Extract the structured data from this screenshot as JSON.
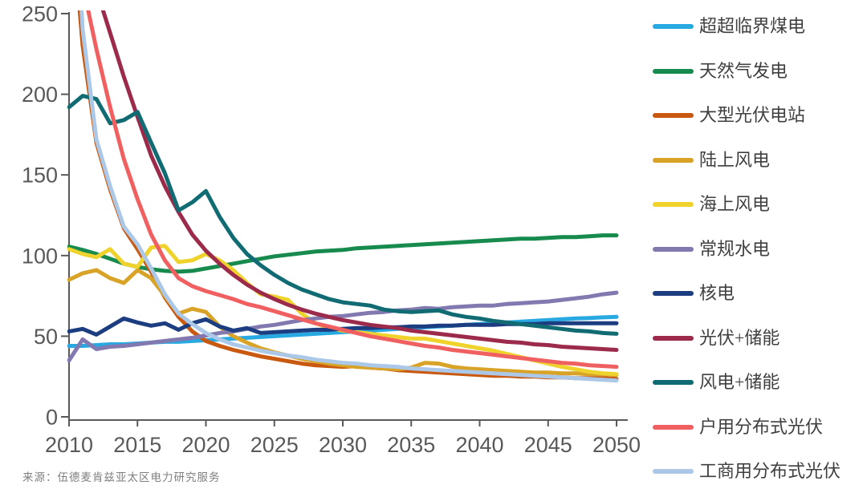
{
  "chart_data": {
    "type": "line",
    "title": "",
    "xlabel": "",
    "ylabel": "",
    "x": [
      2010,
      2011,
      2012,
      2013,
      2014,
      2015,
      2016,
      2017,
      2018,
      2019,
      2020,
      2021,
      2022,
      2023,
      2024,
      2025,
      2026,
      2027,
      2028,
      2029,
      2030,
      2031,
      2032,
      2033,
      2034,
      2035,
      2036,
      2037,
      2038,
      2039,
      2040,
      2041,
      2042,
      2043,
      2044,
      2045,
      2046,
      2047,
      2048,
      2049,
      2050
    ],
    "x_ticks": [
      2010,
      2015,
      2020,
      2025,
      2030,
      2035,
      2040,
      2045,
      2050
    ],
    "y_ticks": [
      0,
      50,
      100,
      150,
      200,
      250
    ],
    "xlim": [
      2010,
      2050
    ],
    "ylim": [
      0,
      250
    ],
    "grid": false,
    "legend_position": "right",
    "axis_color": "#595959",
    "tick_label_color": "#595959",
    "series": [
      {
        "name": "超超临界煤电",
        "color": "#29A9E1",
        "values": [
          44,
          44,
          44.5,
          45,
          45,
          45.5,
          46,
          46.5,
          46.5,
          47,
          47.5,
          48,
          48.5,
          49,
          49.5,
          50,
          50.5,
          51,
          51.5,
          52,
          52.5,
          53,
          53.5,
          54,
          54.5,
          55,
          55.5,
          56,
          56.5,
          57,
          57.5,
          58,
          58.5,
          59,
          59.5,
          60,
          60.5,
          61,
          61.3,
          61.7,
          62
        ]
      },
      {
        "name": "天然气发电",
        "color": "#178A4D",
        "values": [
          105.5,
          103.5,
          101,
          98,
          95,
          93,
          91.5,
          90.5,
          90,
          90.5,
          92,
          93.5,
          95,
          96.5,
          98,
          99.5,
          100.5,
          101.5,
          102.5,
          103,
          103.5,
          104.5,
          105,
          105.5,
          106,
          106.5,
          107,
          107.5,
          108,
          108.5,
          109,
          109.5,
          110,
          110.5,
          110.5,
          111,
          111.5,
          111.5,
          112,
          112.5,
          112.5
        ]
      },
      {
        "name": "大型光伏电站",
        "color": "#C8590E",
        "values": [
          330,
          230,
          170,
          141,
          117,
          104,
          90,
          74,
          62,
          53,
          47,
          44,
          41.5,
          39.5,
          37.5,
          36,
          34.5,
          33,
          32,
          31.5,
          31,
          31.5,
          30.5,
          30,
          29,
          28.5,
          28,
          27.5,
          27,
          26.5,
          26,
          25.5,
          25.5,
          25,
          25,
          24.5,
          24.5,
          24,
          24,
          24,
          23.5
        ]
      },
      {
        "name": "陆上风电",
        "color": "#D9A328",
        "values": [
          85,
          89,
          91,
          86,
          83,
          91,
          86,
          75,
          64,
          67,
          65,
          56,
          50,
          46,
          42.5,
          40,
          38,
          36,
          34.5,
          33,
          32,
          31,
          30.5,
          30,
          29.5,
          30.5,
          33.5,
          33,
          31,
          30,
          29.5,
          29,
          28.5,
          28,
          27.5,
          27.5,
          27,
          27,
          26.5,
          26.5,
          26
        ]
      },
      {
        "name": "海上风电",
        "color": "#EFD32C",
        "values": [
          104,
          101,
          99,
          104,
          95,
          93,
          105,
          106,
          96,
          97,
          101,
          97,
          91,
          83,
          76,
          74.5,
          72.5,
          64,
          58,
          55,
          53.5,
          52.5,
          51.5,
          50.5,
          49.5,
          48.5,
          48.5,
          47,
          45.5,
          44,
          42.5,
          41,
          39,
          37,
          35,
          33,
          31,
          29.5,
          28,
          27,
          26.5
        ]
      },
      {
        "name": "常规水电",
        "color": "#8179AF",
        "values": [
          35,
          48,
          42,
          43.5,
          44,
          45,
          46,
          47,
          48,
          49,
          50.5,
          52,
          53,
          54.5,
          56,
          57,
          58.5,
          60,
          61,
          62,
          62.5,
          63.5,
          64.5,
          65,
          66,
          66.5,
          67.5,
          67,
          68,
          68.5,
          69,
          69,
          70,
          70.5,
          71,
          71.5,
          72.5,
          73.5,
          74.5,
          76,
          77
        ]
      },
      {
        "name": "核电",
        "color": "#1C3D80",
        "values": [
          53,
          54.5,
          51,
          56,
          61,
          58.5,
          56.5,
          58,
          54,
          58,
          60.5,
          56,
          53.5,
          55,
          52,
          52.5,
          53,
          53.5,
          54,
          54,
          54.5,
          55,
          55,
          55.5,
          55.5,
          56,
          56,
          56.5,
          56.5,
          57,
          57,
          57,
          57.5,
          57.5,
          57.5,
          58,
          58,
          58,
          58,
          58,
          58
        ]
      },
      {
        "name": "光伏+储能",
        "color": "#9C2A4B",
        "values": [
          340,
          300,
          265,
          238,
          211,
          186,
          162,
          143,
          127,
          113,
          103,
          95,
          88,
          82,
          77,
          73,
          69.5,
          66.5,
          64,
          62,
          60,
          58.5,
          57,
          56,
          55,
          53.5,
          52.5,
          51.5,
          50.5,
          49.5,
          48.5,
          47.5,
          46.5,
          46,
          45,
          44.5,
          43.5,
          43,
          42.5,
          42,
          41.5
        ]
      },
      {
        "name": "风电+储能",
        "color": "#116B72",
        "values": [
          192,
          199,
          197,
          182,
          184,
          189,
          170,
          151,
          128,
          133,
          140,
          124,
          111,
          101,
          94,
          88,
          83,
          79,
          76,
          73,
          71,
          70,
          69,
          66.5,
          65.5,
          65,
          65.5,
          66,
          63.5,
          62,
          61,
          59.5,
          58.5,
          57.5,
          56.5,
          55.5,
          54.5,
          53.5,
          53,
          52,
          51.5
        ]
      },
      {
        "name": "户用分布式光伏",
        "color": "#F16061",
        "values": [
          320,
          268,
          228,
          192,
          160,
          135,
          113,
          97,
          86,
          81,
          78,
          75.5,
          73,
          70,
          68,
          65.5,
          63,
          60.5,
          58,
          56,
          54,
          52,
          50,
          48.5,
          47,
          45.5,
          44,
          43,
          41.5,
          40.5,
          39.5,
          38.5,
          37.5,
          36.5,
          35.5,
          34.5,
          33.5,
          33,
          32,
          31.5,
          31
        ]
      },
      {
        "name": "工商用分布式光伏",
        "color": "#ABC8E8",
        "values": [
          390,
          240,
          172,
          143,
          118,
          107,
          92,
          76,
          64,
          57.5,
          52,
          48,
          45,
          43,
          41,
          39.5,
          38,
          37,
          35.5,
          34.5,
          33.5,
          33,
          32,
          31.5,
          31,
          30,
          29.5,
          29,
          28.5,
          28,
          27.5,
          27,
          26.5,
          26,
          25.5,
          25,
          24.5,
          24,
          23.5,
          23,
          22.5
        ]
      }
    ]
  },
  "source": {
    "text": "来源：伍德麦肯兹亚太区电力研究服务"
  }
}
